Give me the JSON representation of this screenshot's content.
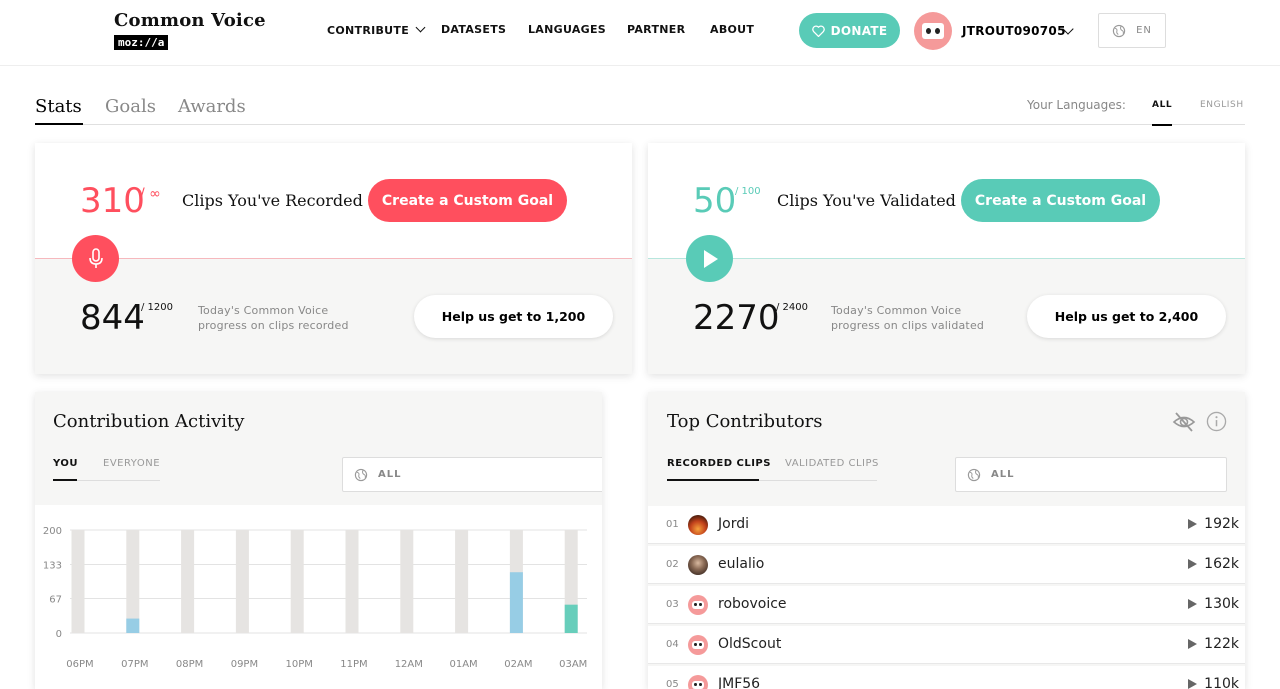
{
  "brand": {
    "title": "Common Voice",
    "sub": "moz://a"
  },
  "nav": {
    "contribute": "CONTRIBUTE",
    "datasets": "DATASETS",
    "languages": "LANGUAGES",
    "partner": "PARTNER",
    "about": "ABOUT"
  },
  "donate": "DONATE",
  "user": {
    "name": "JTROUT090705"
  },
  "locale": "EN",
  "tabs": {
    "stats": "Stats",
    "goals": "Goals",
    "awards": "Awards"
  },
  "languages_filter": {
    "label": "Your Languages:",
    "all": "ALL",
    "english": "ENGLISH"
  },
  "recorded": {
    "count": "310",
    "limit": "/ ∞",
    "label": "Clips You've Recorded",
    "button": "Create a Custom Goal",
    "progress": "844",
    "progress_goal": "/ 1200",
    "desc1": "Today's Common Voice",
    "desc2": "progress on clips recorded",
    "help": "Help us get to 1,200",
    "accent": "#ff4f5e"
  },
  "validated": {
    "count": "50",
    "limit": "/ 100",
    "label": "Clips You've Validated",
    "button": "Create a Custom Goal",
    "progress": "2270",
    "progress_goal": "/ 2400",
    "desc1": "Today's Common Voice",
    "desc2": "progress on clips validated",
    "help": "Help us get to 2,400",
    "accent": "#59cbb7"
  },
  "activity": {
    "title": "Contribution Activity",
    "tab_you": "YOU",
    "tab_everyone": "EVERYONE",
    "filter": "ALL"
  },
  "chart_data": {
    "type": "bar",
    "categories": [
      "06PM",
      "07PM",
      "08PM",
      "09PM",
      "10PM",
      "11PM",
      "12AM",
      "01AM",
      "02AM",
      "03AM"
    ],
    "y_ticks": [
      "200",
      "133",
      "67",
      "0"
    ],
    "ylim": [
      0,
      200
    ],
    "series": [
      {
        "values": [
          0,
          28,
          0,
          0,
          0,
          0,
          0,
          0,
          118,
          0
        ],
        "color": "#8ecae6"
      },
      {
        "values": [
          0,
          0,
          0,
          0,
          0,
          0,
          0,
          0,
          0,
          55
        ],
        "color": "#59cbb7"
      }
    ],
    "background_value": 200
  },
  "contributors": {
    "title": "Top Contributors",
    "tab_recorded": "RECORDED CLIPS",
    "tab_validated": "VALIDATED CLIPS",
    "filter": "ALL",
    "rows": [
      {
        "rank": "01",
        "name": "Jordi",
        "count": "192k",
        "avatar": "photo-sunset"
      },
      {
        "rank": "02",
        "name": "eulalio",
        "count": "162k",
        "avatar": "photo-person"
      },
      {
        "rank": "03",
        "name": "robovoice",
        "count": "130k",
        "avatar": "robot"
      },
      {
        "rank": "04",
        "name": "OldScout",
        "count": "122k",
        "avatar": "robot"
      },
      {
        "rank": "05",
        "name": "JMF56",
        "count": "110k",
        "avatar": "robot"
      }
    ]
  }
}
